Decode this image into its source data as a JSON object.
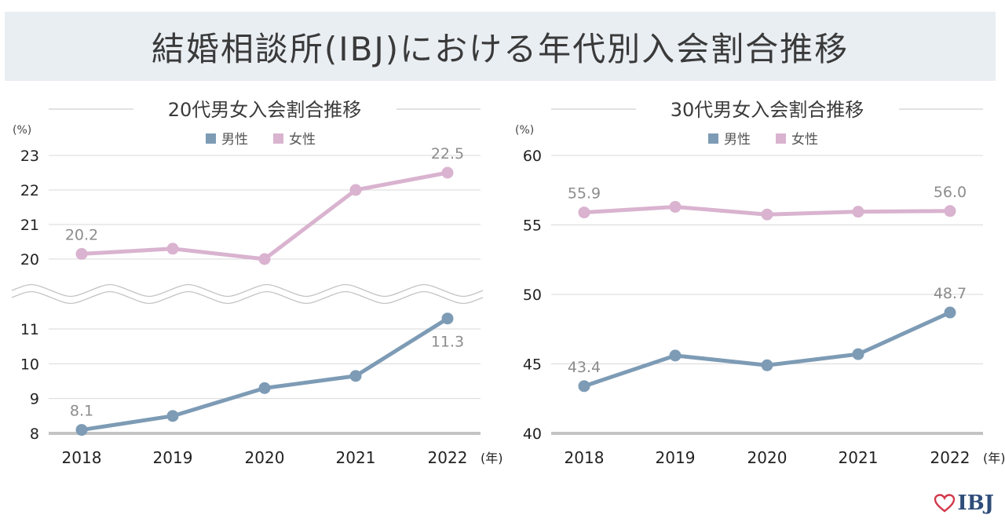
{
  "header": {
    "title": "結婚相談所(IBJ)における年代別入会割合推移"
  },
  "brand": {
    "logo_text": "IBJ",
    "logo_icon": "heart-icon",
    "heart_color": "#d2394b",
    "text_color": "#2f4d7a"
  },
  "colors": {
    "male": "#7d9bb5",
    "female": "#d9b3cf",
    "grid": "#d9d9d9",
    "axis": "#c4c4c4"
  },
  "chart_data": [
    {
      "type": "line",
      "title": "20代男女入会割合推移",
      "y_unit": "(%)",
      "x_unit": "(年)",
      "categories": [
        "2018",
        "2019",
        "2020",
        "2021",
        "2022"
      ],
      "axis_break": true,
      "ylim_upper": [
        20,
        23
      ],
      "ylim_lower": [
        8,
        11
      ],
      "yticks_upper": [
        20,
        21,
        22,
        23
      ],
      "yticks_lower": [
        8,
        9,
        10,
        11
      ],
      "legend_position": "top-center",
      "grid": true,
      "series": [
        {
          "name": "男性",
          "values": [
            8.1,
            8.5,
            9.3,
            9.65,
            11.3
          ],
          "labels": [
            "8.1",
            "",
            "",
            "",
            "11.3"
          ]
        },
        {
          "name": "女性",
          "values": [
            20.15,
            20.3,
            20.0,
            22.0,
            22.5
          ],
          "labels": [
            "20.2",
            "",
            "",
            "",
            "22.5"
          ]
        }
      ]
    },
    {
      "type": "line",
      "title": "30代男女入会割合推移",
      "y_unit": "(%)",
      "x_unit": "(年)",
      "categories": [
        "2018",
        "2019",
        "2020",
        "2021",
        "2022"
      ],
      "axis_break": false,
      "ylim": [
        40,
        60
      ],
      "yticks": [
        40,
        45,
        50,
        55,
        60
      ],
      "legend_position": "top-center",
      "grid": true,
      "series": [
        {
          "name": "男性",
          "values": [
            43.4,
            45.6,
            44.9,
            45.7,
            48.7
          ],
          "labels": [
            "43.4",
            "",
            "",
            "",
            "48.7"
          ]
        },
        {
          "name": "女性",
          "values": [
            55.9,
            56.3,
            55.75,
            55.95,
            56.0
          ],
          "labels": [
            "55.9",
            "",
            "",
            "",
            "56.0"
          ]
        }
      ]
    }
  ]
}
